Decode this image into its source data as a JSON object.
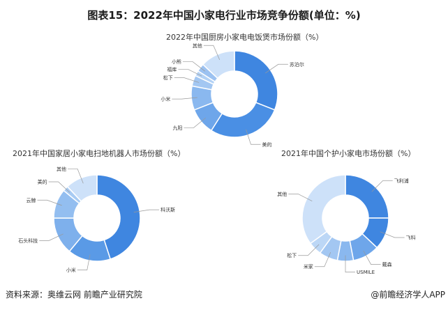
{
  "title": "图表15：2022年中国小家电行业市场竞争份额(单位：%)",
  "source": "资料来源：奥维云网 前瞻产业研究院",
  "credit": "@前瞻经济学人APP",
  "chart_data": [
    {
      "type": "pie",
      "donut": true,
      "title": "2022年中国厨房小家电电饭煲市场份额（%）",
      "categories": [
        "苏泊尔",
        "美的",
        "九阳",
        "小米",
        "松下",
        "福库",
        "小熊",
        "其他"
      ],
      "values": [
        31,
        28,
        10,
        9,
        4,
        2,
        3,
        13
      ],
      "colors": [
        "#3f86e0",
        "#4a8fe4",
        "#6ea6ea",
        "#8ab8ef",
        "#a3c7f2",
        "#b3d2f5",
        "#9cc2f1",
        "#cde1f9"
      ]
    },
    {
      "type": "pie",
      "donut": true,
      "title": "2021年中国家居小家电扫地机器人市场份额（%）",
      "categories": [
        "科沃斯",
        "小米",
        "石头科技",
        "云鲸",
        "美的",
        "其他"
      ],
      "values": [
        45,
        16,
        14,
        11,
        2,
        12
      ],
      "colors": [
        "#3f86e0",
        "#5a9ae6",
        "#7eb0ec",
        "#93bef0",
        "#a8cbf3",
        "#cde1f9"
      ]
    },
    {
      "type": "pie",
      "donut": true,
      "title": "2021年中国个护小家电市场份额（%）",
      "categories": [
        "飞利浦",
        "飞科",
        "戴森",
        "USMILE",
        "米家",
        "松下",
        "其他"
      ],
      "values": [
        25,
        12,
        10,
        6,
        7,
        5,
        35
      ],
      "colors": [
        "#3f86e0",
        "#3f86e0",
        "#6ea6ea",
        "#8ab8ef",
        "#a3c7f2",
        "#bcd7f6",
        "#cde1f9"
      ]
    }
  ]
}
